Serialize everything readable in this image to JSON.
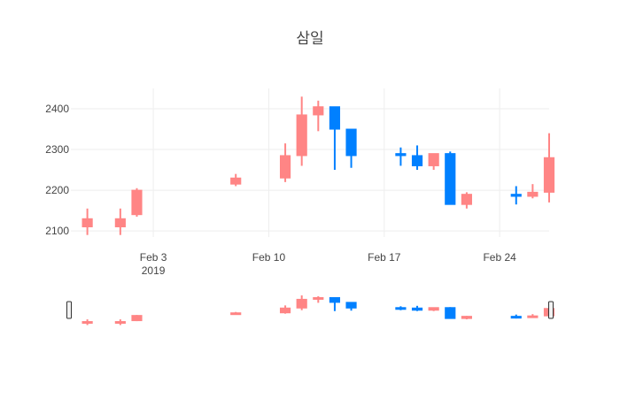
{
  "chart_data": {
    "type": "candlestick",
    "title": "삼일",
    "xlabel": "",
    "ylabel": "",
    "ylim": [
      2085,
      2450
    ],
    "xlim": [
      "2019-01-29",
      "2019-02-27"
    ],
    "y_ticks": [
      2100,
      2200,
      2300,
      2400
    ],
    "x_ticks": [
      {
        "date": "2019-02-03",
        "label": "Feb 3",
        "sublabel": "2019"
      },
      {
        "date": "2019-02-10",
        "label": "Feb 10",
        "sublabel": ""
      },
      {
        "date": "2019-02-17",
        "label": "Feb 17",
        "sublabel": ""
      },
      {
        "date": "2019-02-24",
        "label": "Feb 24",
        "sublabel": ""
      }
    ],
    "grid": true,
    "legend": "none",
    "range_slider": true,
    "increasing_color": "#ff8585",
    "decreasing_color": "#0080ff",
    "candles": [
      {
        "date": "2019-01-30",
        "open": 2110,
        "high": 2155,
        "low": 2090,
        "close": 2130
      },
      {
        "date": "2019-02-01",
        "open": 2110,
        "high": 2155,
        "low": 2090,
        "close": 2130
      },
      {
        "date": "2019-02-02",
        "open": 2140,
        "high": 2205,
        "low": 2135,
        "close": 2200
      },
      {
        "date": "2019-02-08",
        "open": 2215,
        "high": 2240,
        "low": 2210,
        "close": 2230
      },
      {
        "date": "2019-02-11",
        "open": 2230,
        "high": 2315,
        "low": 2220,
        "close": 2285
      },
      {
        "date": "2019-02-12",
        "open": 2285,
        "high": 2430,
        "low": 2260,
        "close": 2385
      },
      {
        "date": "2019-02-13",
        "open": 2385,
        "high": 2420,
        "low": 2345,
        "close": 2405
      },
      {
        "date": "2019-02-14",
        "open": 2405,
        "high": 2405,
        "low": 2250,
        "close": 2350
      },
      {
        "date": "2019-02-15",
        "open": 2350,
        "high": 2350,
        "low": 2255,
        "close": 2285
      },
      {
        "date": "2019-02-18",
        "open": 2290,
        "high": 2305,
        "low": 2260,
        "close": 2285
      },
      {
        "date": "2019-02-19",
        "open": 2285,
        "high": 2310,
        "low": 2250,
        "close": 2260
      },
      {
        "date": "2019-02-20",
        "open": 2260,
        "high": 2290,
        "low": 2250,
        "close": 2290
      },
      {
        "date": "2019-02-21",
        "open": 2290,
        "high": 2295,
        "low": 2165,
        "close": 2165
      },
      {
        "date": "2019-02-22",
        "open": 2165,
        "high": 2195,
        "low": 2155,
        "close": 2190
      },
      {
        "date": "2019-02-25",
        "open": 2190,
        "high": 2210,
        "low": 2165,
        "close": 2185
      },
      {
        "date": "2019-02-26",
        "open": 2185,
        "high": 2215,
        "low": 2180,
        "close": 2195
      },
      {
        "date": "2019-02-27",
        "open": 2195,
        "high": 2340,
        "low": 2170,
        "close": 2280
      }
    ]
  }
}
